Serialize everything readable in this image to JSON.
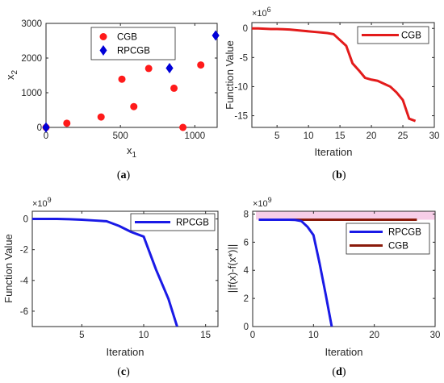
{
  "chart_data": [
    {
      "id": "a",
      "type": "scatter",
      "panel_label": "a",
      "xlabel": "x",
      "xlabel_sub": "1",
      "ylabel": "x",
      "ylabel_sub": "2",
      "xlim": [
        0,
        1150
      ],
      "ylim": [
        0,
        3000
      ],
      "xticks": [
        0,
        500,
        1000
      ],
      "yticks": [
        0,
        1000,
        2000,
        3000
      ],
      "legend_position": "top-center",
      "series": [
        {
          "name": "CGB",
          "color": "#ff1a1a",
          "marker": "circle",
          "points": [
            [
              0,
              0
            ],
            [
              140,
              120
            ],
            [
              370,
              300
            ],
            [
              510,
              1390
            ],
            [
              590,
              600
            ],
            [
              690,
              1700
            ],
            [
              860,
              1130
            ],
            [
              920,
              0
            ],
            [
              1040,
              1800
            ]
          ]
        },
        {
          "name": "RPCGB",
          "color": "#0000d8",
          "marker": "diamond",
          "points": [
            [
              0,
              0
            ],
            [
              830,
              1710
            ],
            [
              1140,
              2650
            ]
          ]
        }
      ]
    },
    {
      "id": "b",
      "type": "line",
      "panel_label": "b",
      "xlabel": "Iteration",
      "ylabel": "Function Value",
      "exponent": "6",
      "xlim": [
        1,
        30
      ],
      "ylim": [
        -17,
        1
      ],
      "xticks": [
        5,
        10,
        15,
        20,
        25,
        30
      ],
      "yticks": [
        0,
        -5,
        -10,
        -15
      ],
      "legend_position": "top-right",
      "series": [
        {
          "name": "CGB",
          "color": "#e31b1b",
          "x": [
            1,
            2,
            3,
            4,
            5,
            6,
            7,
            8,
            9,
            10,
            11,
            12,
            13,
            14,
            15,
            16,
            17,
            18,
            19,
            20,
            21,
            22,
            23,
            24,
            25,
            26,
            27
          ],
          "y": [
            0,
            0,
            -0.05,
            -0.1,
            -0.1,
            -0.15,
            -0.2,
            -0.3,
            -0.4,
            -0.5,
            -0.6,
            -0.7,
            -0.8,
            -1.0,
            -2.0,
            -3.0,
            -6.0,
            -7.2,
            -8.5,
            -8.8,
            -9.0,
            -9.5,
            -10.0,
            -11.0,
            -12.3,
            -15.5,
            -15.9
          ]
        }
      ]
    },
    {
      "id": "c",
      "type": "line",
      "panel_label": "c",
      "xlabel": "Iteration",
      "ylabel": "Function Value",
      "exponent": "9",
      "xlim": [
        1,
        16
      ],
      "ylim": [
        -7,
        0.5
      ],
      "xticks": [
        5,
        10,
        15
      ],
      "yticks": [
        0,
        -2,
        -4,
        -6
      ],
      "legend_position": "top-right",
      "series": [
        {
          "name": "RPCGB",
          "color": "#1a1ae6",
          "x": [
            1,
            2,
            3,
            4,
            5,
            6,
            7,
            8,
            9,
            10,
            11,
            12,
            12.7
          ],
          "y": [
            0,
            0,
            0,
            -0.02,
            -0.05,
            -0.1,
            -0.15,
            -0.45,
            -0.85,
            -1.15,
            -3.3,
            -5.2,
            -7.0
          ]
        }
      ]
    },
    {
      "id": "d",
      "type": "line",
      "panel_label": "d",
      "xlabel": "Iteration",
      "ylabel": "||f(x)-f(x*)||",
      "exponent": "9",
      "xlim": [
        0,
        30
      ],
      "ylim": [
        0,
        8.2
      ],
      "xticks": [
        0,
        10,
        20,
        30
      ],
      "yticks": [
        0,
        2,
        4,
        6,
        8
      ],
      "legend_position": "right",
      "series": [
        {
          "name": "RPCGB",
          "color": "#1a1ae6",
          "x": [
            1,
            2,
            3,
            4,
            5,
            6,
            7,
            8,
            9,
            10,
            11,
            12,
            13
          ],
          "y": [
            7.6,
            7.6,
            7.6,
            7.6,
            7.6,
            7.6,
            7.58,
            7.5,
            7.1,
            6.5,
            4.5,
            2.3,
            0
          ]
        },
        {
          "name": "CGB",
          "color": "#8a1a0a",
          "x": [
            1,
            27
          ],
          "y": [
            7.6,
            7.6
          ]
        }
      ]
    }
  ]
}
